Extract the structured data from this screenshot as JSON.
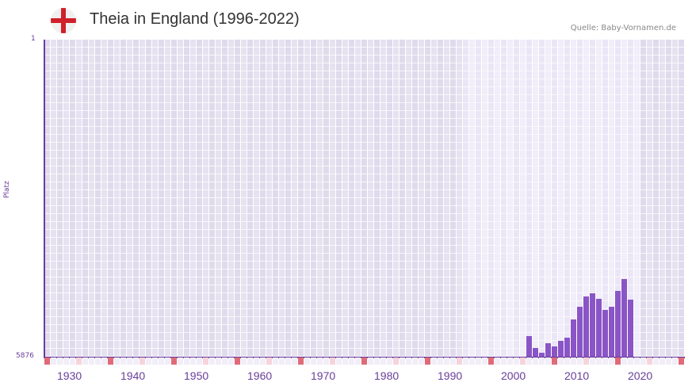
{
  "header": {
    "title": "Theia in England (1996-2022)",
    "source": "Quelle: Baby-Vornamen.de",
    "flag_icon": "england-flag-icon"
  },
  "axis": {
    "ylabel": "Platz",
    "ytop": "1",
    "ybottom": "5876",
    "xticks": [
      "1930",
      "1940",
      "1950",
      "1960",
      "1970",
      "1980",
      "1990",
      "2000",
      "2010",
      "2020"
    ]
  },
  "colors": {
    "bar": "#8a55c6",
    "axis": "#6a3d9a",
    "marker_decade": "#e06a78",
    "marker_half": "#f6d4dc"
  },
  "chart_data": {
    "type": "bar",
    "title": "Theia in England (1996-2022)",
    "xlabel": "",
    "ylabel": "Platz",
    "ylim": [
      5876,
      1
    ],
    "x_range": [
      1928,
      2028
    ],
    "highlight_range": [
      1994,
      2021
    ],
    "grid": true,
    "categories": [
      2004,
      2005,
      2006,
      2007,
      2008,
      2009,
      2010,
      2011,
      2012,
      2013,
      2014,
      2015,
      2016,
      2017,
      2018,
      2019,
      2020
    ],
    "values": [
      5494,
      5714,
      5802,
      5626,
      5685,
      5582,
      5523,
      5186,
      4951,
      4760,
      4701,
      4804,
      5010,
      4951,
      4657,
      4437,
      4819
    ]
  }
}
